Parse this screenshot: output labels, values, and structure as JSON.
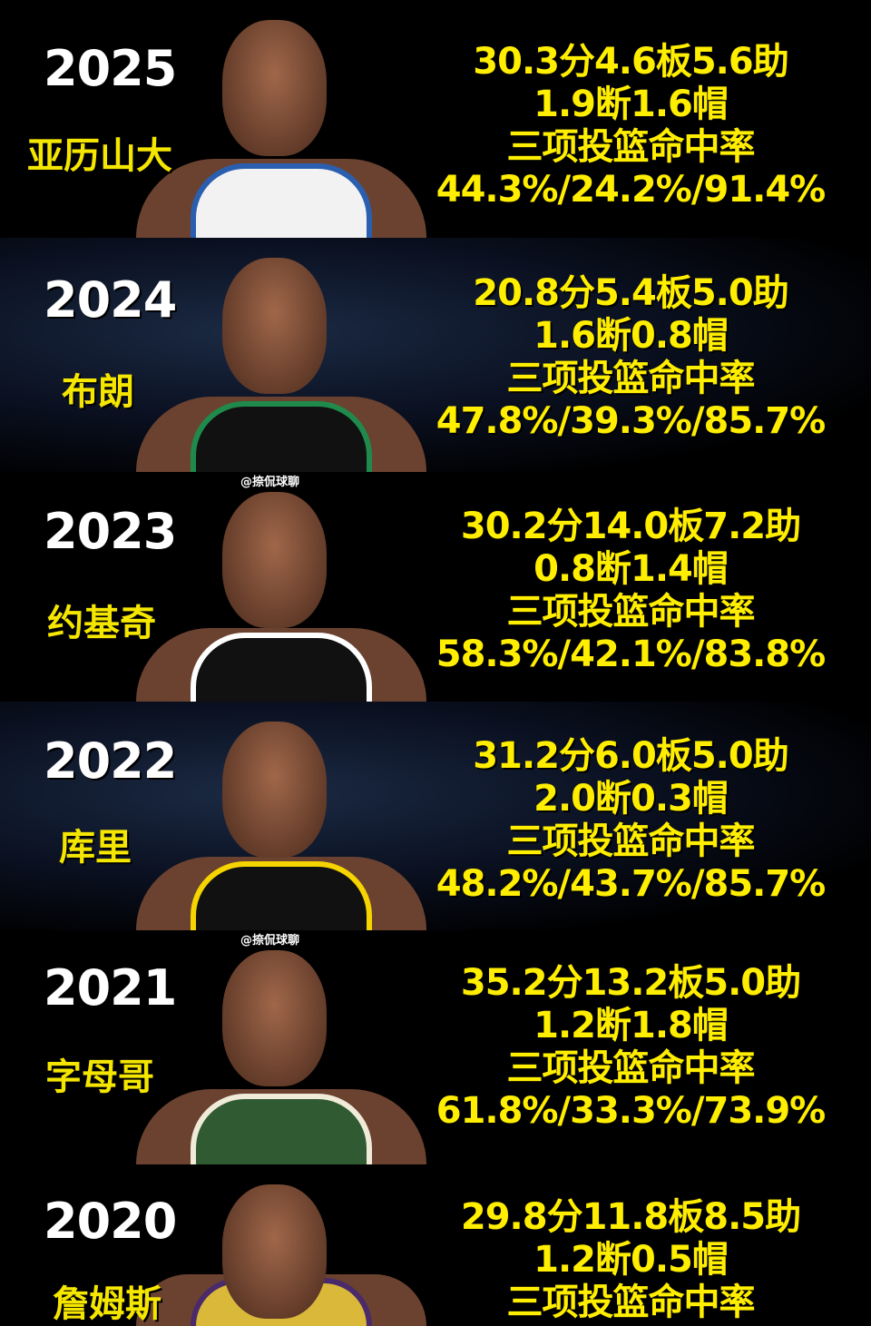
{
  "rows": [
    {
      "year": "2025",
      "name": "亚历山大",
      "line1": "30.3分4.6板5.6助",
      "line2": "1.9断1.6帽",
      "line3": "三项投篮命中率",
      "line4": "44.3%/24.2%/91.4%",
      "jersey_color": "#f2f2f2",
      "trim_color": "#2a5fb0"
    },
    {
      "year": "2024",
      "name": "布朗",
      "line1": "20.8分5.4板5.0助",
      "line2": "1.6断0.8帽",
      "line3": "三项投篮命中率",
      "line4": "47.8%/39.3%/85.7%",
      "jersey_color": "#111111",
      "trim_color": "#1f8a4c"
    },
    {
      "year": "2023",
      "name": "约基奇",
      "line1": "30.2分14.0板7.2助",
      "line2": "0.8断1.4帽",
      "line3": "三项投篮命中率",
      "line4": "58.3%/42.1%/83.8%",
      "jersey_color": "#111111",
      "trim_color": "#ffffff",
      "watermark": "@捺侃球聊"
    },
    {
      "year": "2022",
      "name": "库里",
      "line1": "31.2分6.0板5.0助",
      "line2": "2.0断0.3帽",
      "line3": "三项投篮命中率",
      "line4": "48.2%/43.7%/85.7%",
      "jersey_color": "#111111",
      "trim_color": "#f5d400"
    },
    {
      "year": "2021",
      "name": "字母哥",
      "line1": "35.2分13.2板5.0助",
      "line2": "1.2断1.8帽",
      "line3": "三项投篮命中率",
      "line4": "61.8%/33.3%/73.9%",
      "jersey_color": "#2f5a32",
      "trim_color": "#f0ebd8",
      "watermark": "@捺侃球聊"
    },
    {
      "year": "2020",
      "name": "詹姆斯",
      "line1": "29.8分11.8板8.5助",
      "line2": "1.2断0.5帽",
      "line3": "三项投篮命中率",
      "line4": "",
      "jersey_color": "#d9b83a",
      "trim_color": "#4a2a6a"
    }
  ]
}
